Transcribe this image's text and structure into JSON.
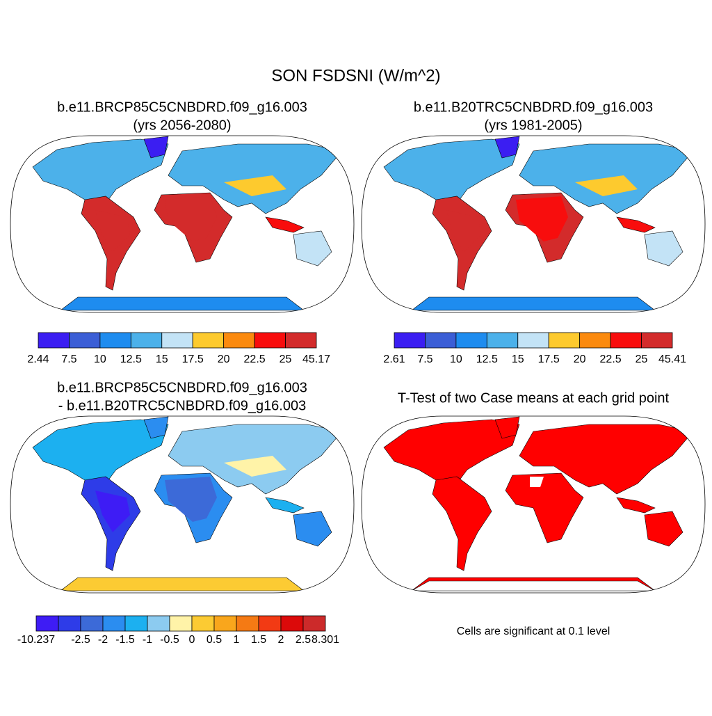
{
  "title": "SON FSDSNI (W/m^2)",
  "panels": [
    {
      "title": [
        "b.e11.BRCP85C5CNBDRD.f09_g16.003",
        "(yrs 2056-2080)"
      ],
      "colorbar": {
        "colors": [
          "#3b1ef2",
          "#3b5ed6",
          "#1e8cef",
          "#4cb1ea",
          "#c3e3f6",
          "#fdca2e",
          "#fb8a0e",
          "#f80d0d",
          "#d32b2b"
        ],
        "labels": [
          "2.44",
          "7.5",
          "10",
          "12.5",
          "15",
          "17.5",
          "20",
          "22.5",
          "25",
          "45.17"
        ]
      }
    },
    {
      "title": [
        "b.e11.B20TRC5CNBDRD.f09_g16.003",
        "(yrs 1981-2005)"
      ],
      "colorbar": {
        "colors": [
          "#3b1ef2",
          "#3b5ed6",
          "#1e8cef",
          "#4cb1ea",
          "#c3e3f6",
          "#fdca2e",
          "#fb8a0e",
          "#f80d0d",
          "#d32b2b"
        ],
        "labels": [
          "2.61",
          "7.5",
          "10",
          "12.5",
          "15",
          "17.5",
          "20",
          "22.5",
          "25",
          "45.41"
        ]
      }
    },
    {
      "title": [
        "b.e11.BRCP85C5CNBDRD.f09_g16.003",
        "- b.e11.B20TRC5CNBDRD.f09_g16.003"
      ],
      "colorbar": {
        "colors": [
          "#3e1cf5",
          "#2e3ce8",
          "#3c6ad8",
          "#2b8df0",
          "#1cb0f0",
          "#8ccbf0",
          "#fff3a8",
          "#fccb33",
          "#f9a61c",
          "#f57a14",
          "#f23a14",
          "#dc0a0a",
          "#cc2a2a"
        ],
        "labels": [
          "-10.237",
          null,
          "-2.5",
          "-2",
          "-1.5",
          "-1",
          "-0.5",
          "0",
          "0.5",
          "1",
          "1.5",
          "2",
          "2.5",
          "8.301"
        ]
      }
    },
    {
      "title": [
        "T-Test of two Case means at each grid point"
      ],
      "fill_color": "#ff0000",
      "note": "Cells are significant at 0.1 level"
    }
  ]
}
